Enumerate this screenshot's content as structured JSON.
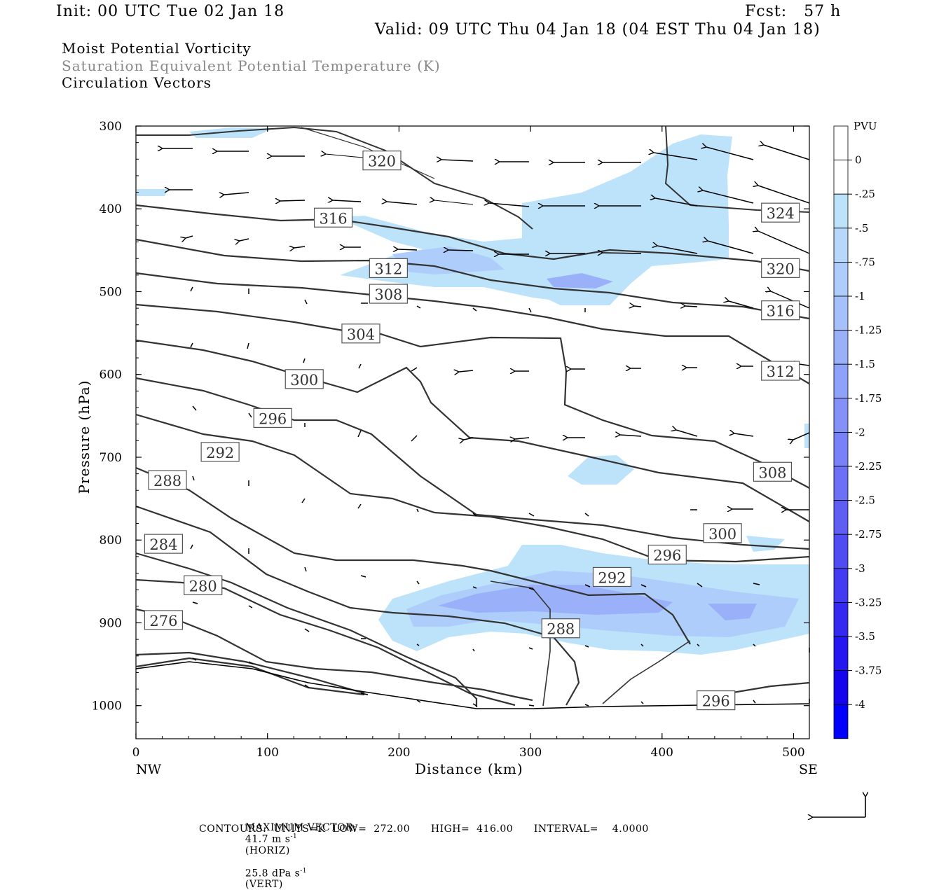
{
  "header": {
    "init": "Init: 00 UTC Tue 02 Jan 18",
    "fcst": "Fcst:   57 h",
    "valid": "Valid: 09 UTC Thu 04 Jan 18 (04 EST Thu 04 Jan 18)",
    "field1": "Moist Potential Vorticity",
    "field2": "Saturation Equivalent Potential Temperature (K)",
    "field3": "Circulation Vectors"
  },
  "footer": {
    "line1_label": "MAXIMUM VECTOR:",
    "line1_horiz": "41.7 m s",
    "line1_horiz_unit": "(HORIZ)",
    "line1_vert": "25.8 dPa s",
    "line1_vert_unit": "(VERT)",
    "line2": "CONTOURS:  UNITS=K  LOW=  272.00      HIGH=  416.00      INTERVAL=    4.0000"
  },
  "chart_data": {
    "type": "cross-section",
    "xlabel": "Distance (km)",
    "ylabel": "Pressure (hPa)",
    "x_ticks": [
      0,
      100,
      200,
      300,
      400,
      500
    ],
    "y_ticks": [
      300,
      400,
      500,
      600,
      700,
      800,
      900,
      1000
    ],
    "xlim": [
      0,
      512
    ],
    "ylim": [
      1040,
      300
    ],
    "x_end_labels": {
      "left": "NW",
      "right": "SE"
    },
    "colorbar": {
      "unit": "PVU",
      "labels": [
        "0",
        "-.25",
        "-.5",
        "-.75",
        "-1",
        "-1.25",
        "-1.5",
        "-1.75",
        "-2",
        "-2.25",
        "-2.5",
        "-2.75",
        "-3",
        "-3.25",
        "-3.5",
        "-3.75",
        "-4"
      ],
      "colors": [
        "#ffffff",
        "#ffffff",
        "#bde3fb",
        "#b7d8fb",
        "#afcdfb",
        "#a5c0fa",
        "#9ab1fa",
        "#8fa2f9",
        "#8491f8",
        "#7881f7",
        "#6b70f5",
        "#5e5df4",
        "#504cf3",
        "#423bf1",
        "#3429f0",
        "#2517ef",
        "#1405ee",
        "#0000ff"
      ]
    },
    "contour_labels": [
      {
        "value": "320",
        "x": 187,
        "p": 342
      },
      {
        "value": "316",
        "x": 150,
        "p": 411
      },
      {
        "value": "312",
        "x": 192,
        "p": 472
      },
      {
        "value": "308",
        "x": 192,
        "p": 503
      },
      {
        "value": "304",
        "x": 171,
        "p": 551
      },
      {
        "value": "300",
        "x": 128,
        "p": 606
      },
      {
        "value": "296",
        "x": 104,
        "p": 653
      },
      {
        "value": "292",
        "x": 64,
        "p": 694
      },
      {
        "value": "288",
        "x": 24,
        "p": 728
      },
      {
        "value": "284",
        "x": 21,
        "p": 805
      },
      {
        "value": "280",
        "x": 51,
        "p": 855
      },
      {
        "value": "276",
        "x": 21,
        "p": 897
      },
      {
        "value": "324",
        "x": 490,
        "p": 405
      },
      {
        "value": "320",
        "x": 490,
        "p": 472
      },
      {
        "value": "316",
        "x": 490,
        "p": 523
      },
      {
        "value": "312",
        "x": 490,
        "p": 596
      },
      {
        "value": "308",
        "x": 484,
        "p": 718
      },
      {
        "value": "300",
        "x": 446,
        "p": 792
      },
      {
        "value": "296",
        "x": 404,
        "p": 818
      },
      {
        "value": "292",
        "x": 362,
        "p": 845
      },
      {
        "value": "288",
        "x": 323,
        "p": 907
      },
      {
        "value": "296",
        "x": 441,
        "p": 994
      }
    ]
  }
}
